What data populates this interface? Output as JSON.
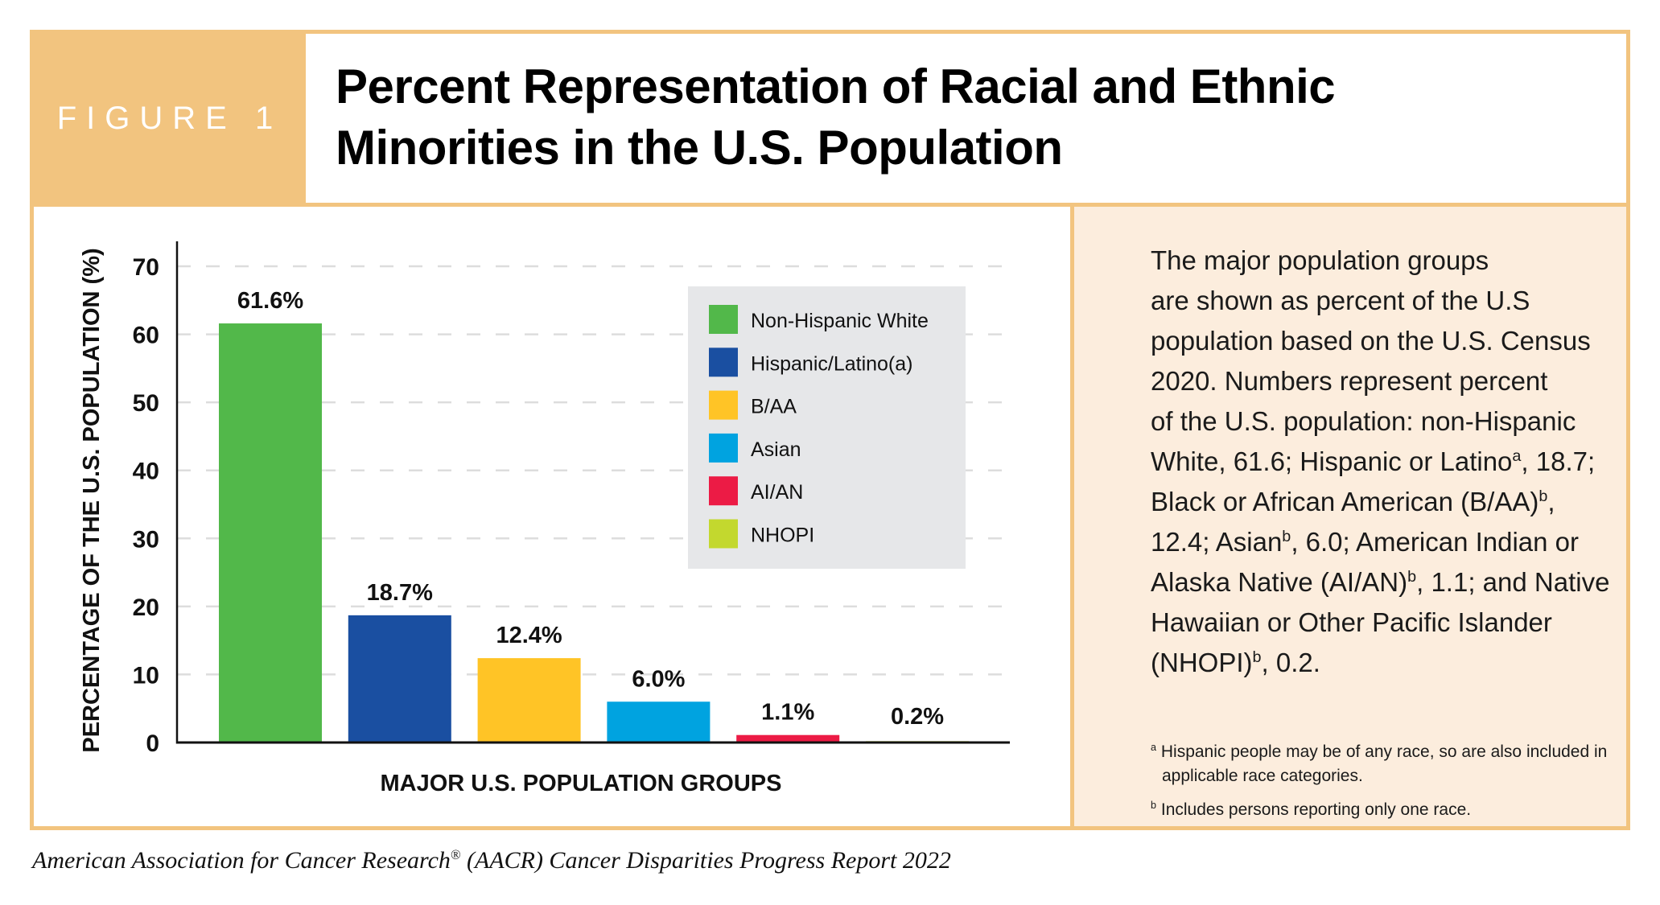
{
  "figure_label": "FIGURE 1",
  "title_line1": "Percent Representation of Racial and Ethnic",
  "title_line2": "Minorities in the U.S. Population",
  "description": {
    "l1": "The major population groups",
    "l2": "are shown as percent of the U.S",
    "l3": "population based on the U.S. Census",
    "l4": "2020. Numbers represent percent",
    "l5": "of the U.S. population: non-Hispanic",
    "l6a": "White, 61.6; Hispanic or Latino",
    "l6sup": "a",
    "l6b": ", 18.7;",
    "l7a": "Black or African American (B/AA)",
    "l7sup": "b",
    "l7b": ",",
    "l8a": "12.4; Asian",
    "l8sup": "b",
    "l8b": ", 6.0; American Indian or",
    "l9a": "Alaska Native (AI/AN)",
    "l9sup": "b",
    "l9b": ", 1.1; and Native",
    "l10": "Hawaiian or Other Pacific Islander",
    "l11a": "(NHOPI)",
    "l11sup": "b",
    "l11b": ", 0.2."
  },
  "footnotes": {
    "a_mark": "a",
    "a_text": "Hispanic people may be of any race, so are also included in applicable race categories.",
    "b_mark": "b",
    "b_text": "Includes persons reporting only one race."
  },
  "caption": {
    "text": "American Association for Cancer Research",
    "reg": "®",
    "rest": " (AACR) Cancer Disparities Progress Report 2022"
  },
  "chart_data": {
    "type": "bar",
    "title": "Percent Representation of Racial and Ethnic Minorities in the U.S. Population",
    "xlabel": "MAJOR U.S. POPULATION GROUPS",
    "ylabel": "PERCENTAGE OF THE U.S. POPULATION (%)",
    "ylim": [
      0,
      70
    ],
    "yticks": [
      0,
      10,
      20,
      30,
      40,
      50,
      60,
      70
    ],
    "grid": true,
    "legend_position": "top-right",
    "categories": [
      "Non-Hispanic White",
      "Hispanic/Latino(a)",
      "B/AA",
      "Asian",
      "AI/AN",
      "NHOPI"
    ],
    "values": [
      61.6,
      18.7,
      12.4,
      6.0,
      1.1,
      0.2
    ],
    "value_labels": [
      "61.6%",
      "18.7%",
      "12.4%",
      "6.0%",
      "1.1%",
      "0.2%"
    ],
    "colors": [
      "#52B84A",
      "#1A4FA1",
      "#FFC426",
      "#00A3E0",
      "#EC1B45",
      "#C3D82E"
    ]
  },
  "colors": {
    "frame": "#F2C47F",
    "panel": "#FCEDDD",
    "legend_bg": "#E6E7E9",
    "grid": "#DDDDDD"
  }
}
